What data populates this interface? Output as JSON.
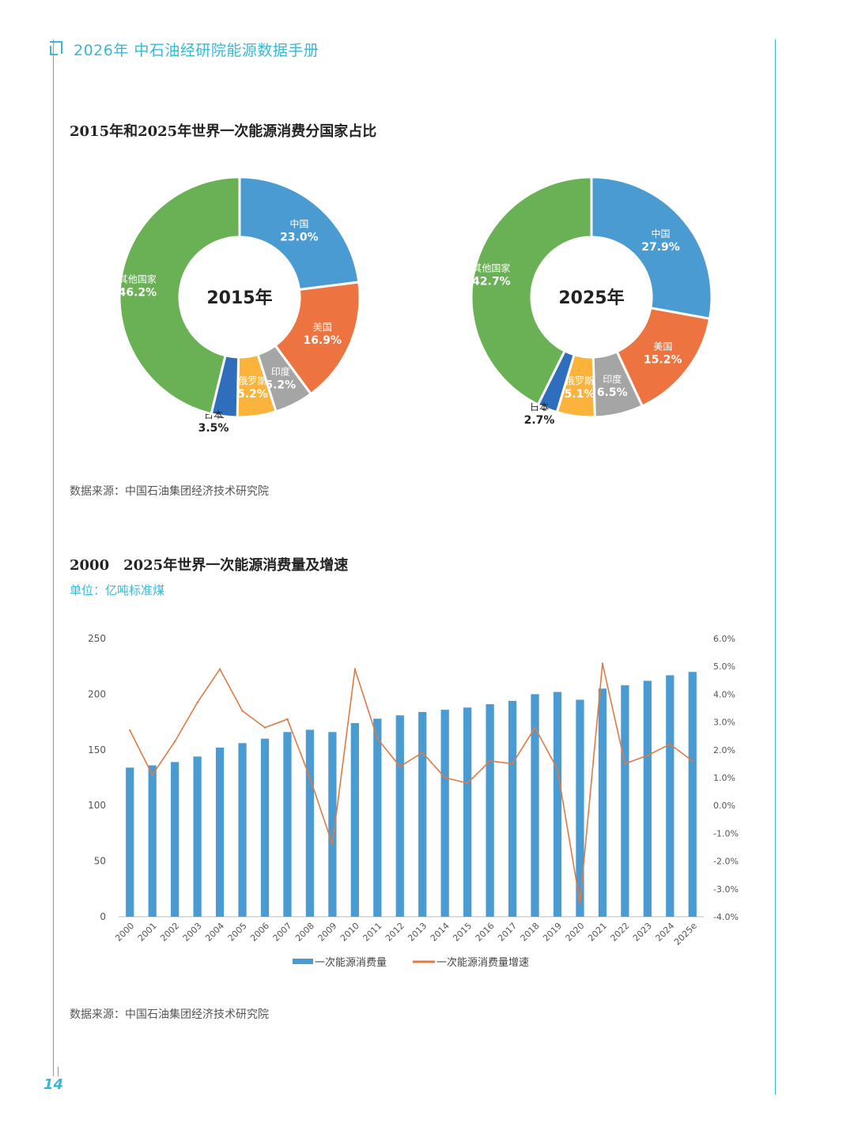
{
  "header": {
    "title": "2026年 中石油经研院能源数据手册"
  },
  "page_number": "14",
  "sections": {
    "donut": {
      "title": "2015年和2025年世界一次能源消费分国家占比",
      "source": "数据来源：中国石油集团经济技术研究院"
    },
    "combo": {
      "title": "2000　2025年世界一次能源消费量及增速",
      "unit": "单位：亿吨标准煤",
      "source": "数据来源：中国石油集团经济技术研究院"
    }
  },
  "colors": {
    "accent": "#3bb7d6",
    "china": "#4a9bd1",
    "usa": "#ed7440",
    "india": "#a5a5a5",
    "russia": "#fbb33b",
    "japan": "#2f6ebd",
    "others": "#6ab155",
    "bar": "#4a9bd1",
    "line": "#e07a45"
  },
  "chart_data": [
    {
      "type": "pie",
      "center_label": "2015年",
      "slices": [
        {
          "name": "中国",
          "value": 23.0,
          "label": "23.0%"
        },
        {
          "name": "美国",
          "value": 16.9,
          "label": "16.9%"
        },
        {
          "name": "印度",
          "value": 5.2,
          "label": "5.2%"
        },
        {
          "name": "俄罗斯",
          "value": 5.2,
          "label": "5.2%"
        },
        {
          "name": "日本",
          "value": 3.5,
          "label": "3.5%"
        },
        {
          "name": "其他国家",
          "value": 46.2,
          "label": "46.2%"
        }
      ]
    },
    {
      "type": "pie",
      "center_label": "2025年",
      "slices": [
        {
          "name": "中国",
          "value": 27.9,
          "label": "27.9%"
        },
        {
          "name": "美国",
          "value": 15.2,
          "label": "15.2%"
        },
        {
          "name": "印度",
          "value": 6.5,
          "label": "6.5%"
        },
        {
          "name": "俄罗斯",
          "value": 5.1,
          "label": "5.1%"
        },
        {
          "name": "日本",
          "value": 2.7,
          "label": "2.7%"
        },
        {
          "name": "其他国家",
          "value": 42.7,
          "label": "42.7%"
        }
      ]
    },
    {
      "type": "bar",
      "categories": [
        "2000",
        "2001",
        "2002",
        "2003",
        "2004",
        "2005",
        "2006",
        "2007",
        "2008",
        "2009",
        "2010",
        "2011",
        "2012",
        "2013",
        "2014",
        "2015",
        "2016",
        "2017",
        "2018",
        "2019",
        "2020",
        "2021",
        "2022",
        "2023",
        "2024",
        "2025e"
      ],
      "series": [
        {
          "name": "一次能源消费量",
          "type": "bar",
          "axis": "left",
          "values": [
            134,
            136,
            139,
            144,
            152,
            156,
            160,
            166,
            168,
            166,
            174,
            178,
            181,
            184,
            186,
            188,
            191,
            194,
            200,
            202,
            195,
            205,
            208,
            212,
            217,
            220
          ]
        },
        {
          "name": "一次能源消费量增速",
          "type": "line",
          "axis": "right",
          "values": [
            2.7,
            1.1,
            2.3,
            3.7,
            4.9,
            3.4,
            2.8,
            3.1,
            1.0,
            -1.4,
            4.9,
            2.4,
            1.4,
            1.9,
            1.0,
            0.8,
            1.6,
            1.5,
            2.8,
            1.3,
            -3.5,
            5.1,
            1.5,
            1.8,
            2.2,
            1.6
          ]
        }
      ],
      "ylim": [
        0,
        250
      ],
      "yticks": [
        "0",
        "50",
        "100",
        "150",
        "200",
        "250"
      ],
      "y2lim": [
        -4.0,
        6.0
      ],
      "y2ticks": [
        "-4.0%",
        "-3.0%",
        "-2.0%",
        "-1.0%",
        "0.0%",
        "1.0%",
        "2.0%",
        "3.0%",
        "4.0%",
        "5.0%",
        "6.0%"
      ],
      "grid": false,
      "legend": "bottom"
    }
  ]
}
